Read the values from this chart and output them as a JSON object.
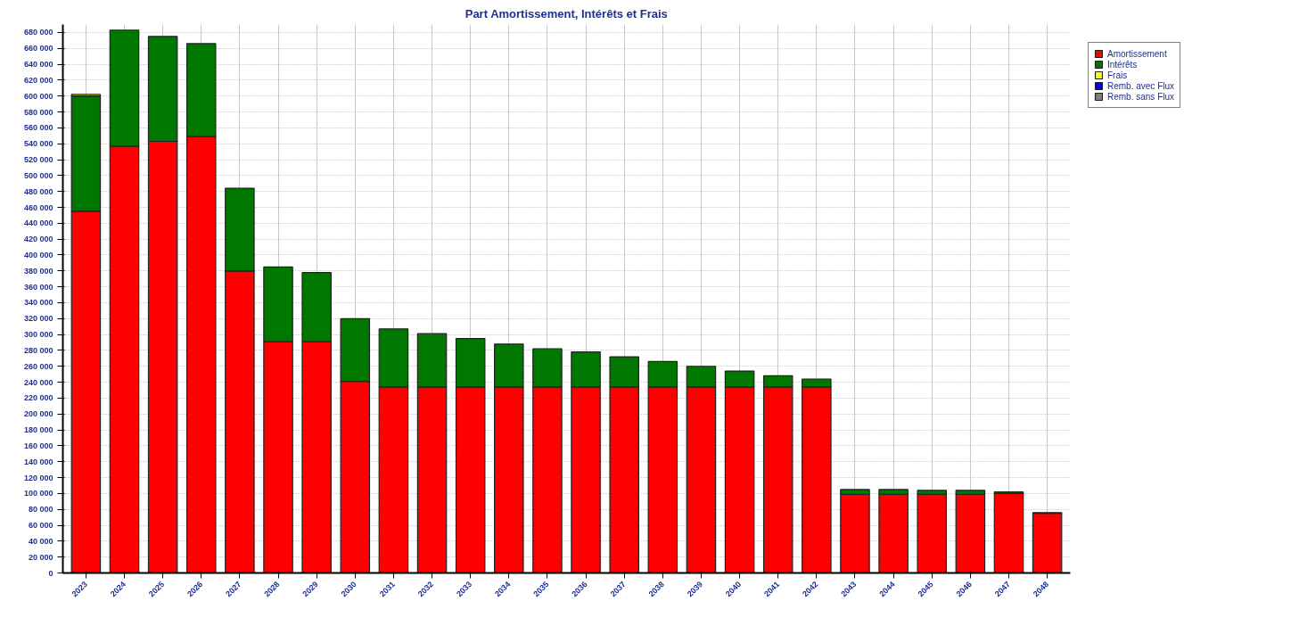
{
  "chart_data": {
    "type": "bar",
    "title": "Part Amortissement, Intérêts et Frais",
    "stacked": true,
    "grid": true,
    "legend": "right",
    "categories": [
      "2023",
      "2024",
      "2025",
      "2026",
      "2027",
      "2028",
      "2029",
      "2030",
      "2031",
      "2032",
      "2033",
      "2034",
      "2035",
      "2036",
      "2037",
      "2038",
      "2039",
      "2040",
      "2041",
      "2042",
      "2043",
      "2044",
      "2045",
      "2046",
      "2047",
      "2048"
    ],
    "series": [
      {
        "name": "Amortissement",
        "color": "#ff0000",
        "values": [
          455000,
          537000,
          543000,
          549000,
          380000,
          291000,
          291000,
          241000,
          234000,
          234000,
          234000,
          234000,
          234000,
          234000,
          234000,
          234000,
          234000,
          234000,
          234000,
          234000,
          99000,
          99000,
          99000,
          99000,
          100000,
          75000
        ]
      },
      {
        "name": "Intérêts",
        "color": "#007800",
        "values": [
          145000,
          146000,
          132000,
          117000,
          104000,
          94000,
          87000,
          79000,
          73000,
          67000,
          61000,
          54000,
          48000,
          44000,
          38000,
          32000,
          26000,
          20000,
          14000,
          10000,
          6000,
          6000,
          5000,
          5000,
          2000,
          1000
        ]
      },
      {
        "name": "Frais",
        "color": "#ffff00",
        "values": [
          2000,
          null,
          null,
          null,
          null,
          null,
          null,
          null,
          null,
          null,
          null,
          null,
          null,
          null,
          null,
          null,
          null,
          null,
          null,
          null,
          null,
          null,
          null,
          null,
          null,
          null
        ]
      },
      {
        "name": "Remb. avec Flux",
        "color": "#0000ff",
        "values": [
          null,
          null,
          null,
          null,
          null,
          null,
          null,
          null,
          null,
          null,
          null,
          null,
          null,
          null,
          null,
          null,
          null,
          null,
          null,
          null,
          null,
          null,
          null,
          null,
          null,
          null
        ]
      },
      {
        "name": "Remb. sans Flux",
        "color": "#808080",
        "values": [
          null,
          null,
          null,
          null,
          null,
          null,
          null,
          null,
          null,
          null,
          null,
          null,
          null,
          null,
          null,
          null,
          null,
          null,
          null,
          null,
          null,
          null,
          null,
          null,
          null,
          null
        ]
      }
    ],
    "ylim": [
      0,
      690000
    ],
    "yticks": [
      {
        "value": 0,
        "label": "0"
      },
      {
        "value": 20000,
        "label": "20 000"
      },
      {
        "value": 40000,
        "label": "40 000"
      },
      {
        "value": 60000,
        "label": "60 000"
      },
      {
        "value": 80000,
        "label": "80 000"
      },
      {
        "value": 100000,
        "label": "100 000"
      },
      {
        "value": 120000,
        "label": "120 000"
      },
      {
        "value": 140000,
        "label": "140 000"
      },
      {
        "value": 160000,
        "label": "160 000"
      },
      {
        "value": 180000,
        "label": "180 000"
      },
      {
        "value": 200000,
        "label": "200 000"
      },
      {
        "value": 220000,
        "label": "220 000"
      },
      {
        "value": 240000,
        "label": "240 000"
      },
      {
        "value": 260000,
        "label": "260 000"
      },
      {
        "value": 280000,
        "label": "280 000"
      },
      {
        "value": 300000,
        "label": "300 000"
      },
      {
        "value": 320000,
        "label": "320 000"
      },
      {
        "value": 340000,
        "label": "340 000"
      },
      {
        "value": 360000,
        "label": "360 000"
      },
      {
        "value": 380000,
        "label": "380 000"
      },
      {
        "value": 400000,
        "label": "400 000"
      },
      {
        "value": 420000,
        "label": "420 000"
      },
      {
        "value": 440000,
        "label": "440 000"
      },
      {
        "value": 460000,
        "label": "460 000"
      },
      {
        "value": 480000,
        "label": "480 000"
      },
      {
        "value": 500000,
        "label": "500 000"
      },
      {
        "value": 520000,
        "label": "520 000"
      },
      {
        "value": 540000,
        "label": "540 000"
      },
      {
        "value": 560000,
        "label": "560 000"
      },
      {
        "value": 580000,
        "label": "580 000"
      },
      {
        "value": 600000,
        "label": "600 000"
      },
      {
        "value": 620000,
        "label": "620 000"
      },
      {
        "value": 640000,
        "label": "640 000"
      },
      {
        "value": 660000,
        "label": "660 000"
      },
      {
        "value": 680000,
        "label": "680 000"
      }
    ]
  }
}
